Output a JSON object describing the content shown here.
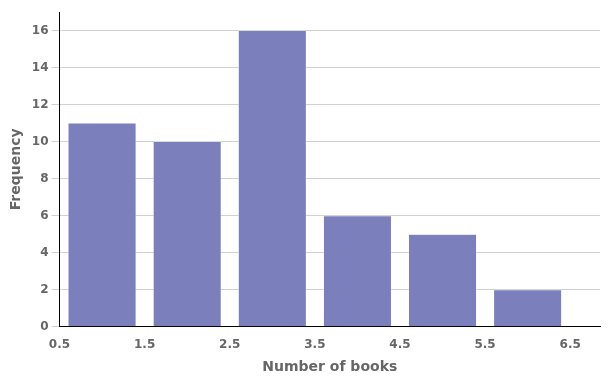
{
  "chart_data": {
    "type": "bar",
    "x": [
      1,
      2,
      3,
      4,
      5,
      6
    ],
    "values": [
      11,
      10,
      16,
      6,
      5,
      2
    ],
    "color": "#7b7fbb",
    "xlabel": "Number of books",
    "ylabel": "Frequency",
    "xlim": [
      0.5,
      6.85
    ],
    "xticks": [
      0.5,
      1.5,
      2.5,
      3.5,
      4.5,
      5.5,
      6.5
    ],
    "ylim": [
      0,
      17
    ],
    "yticks": [
      0,
      2,
      4,
      6,
      8,
      10,
      12,
      14,
      16
    ],
    "grid": true
  }
}
